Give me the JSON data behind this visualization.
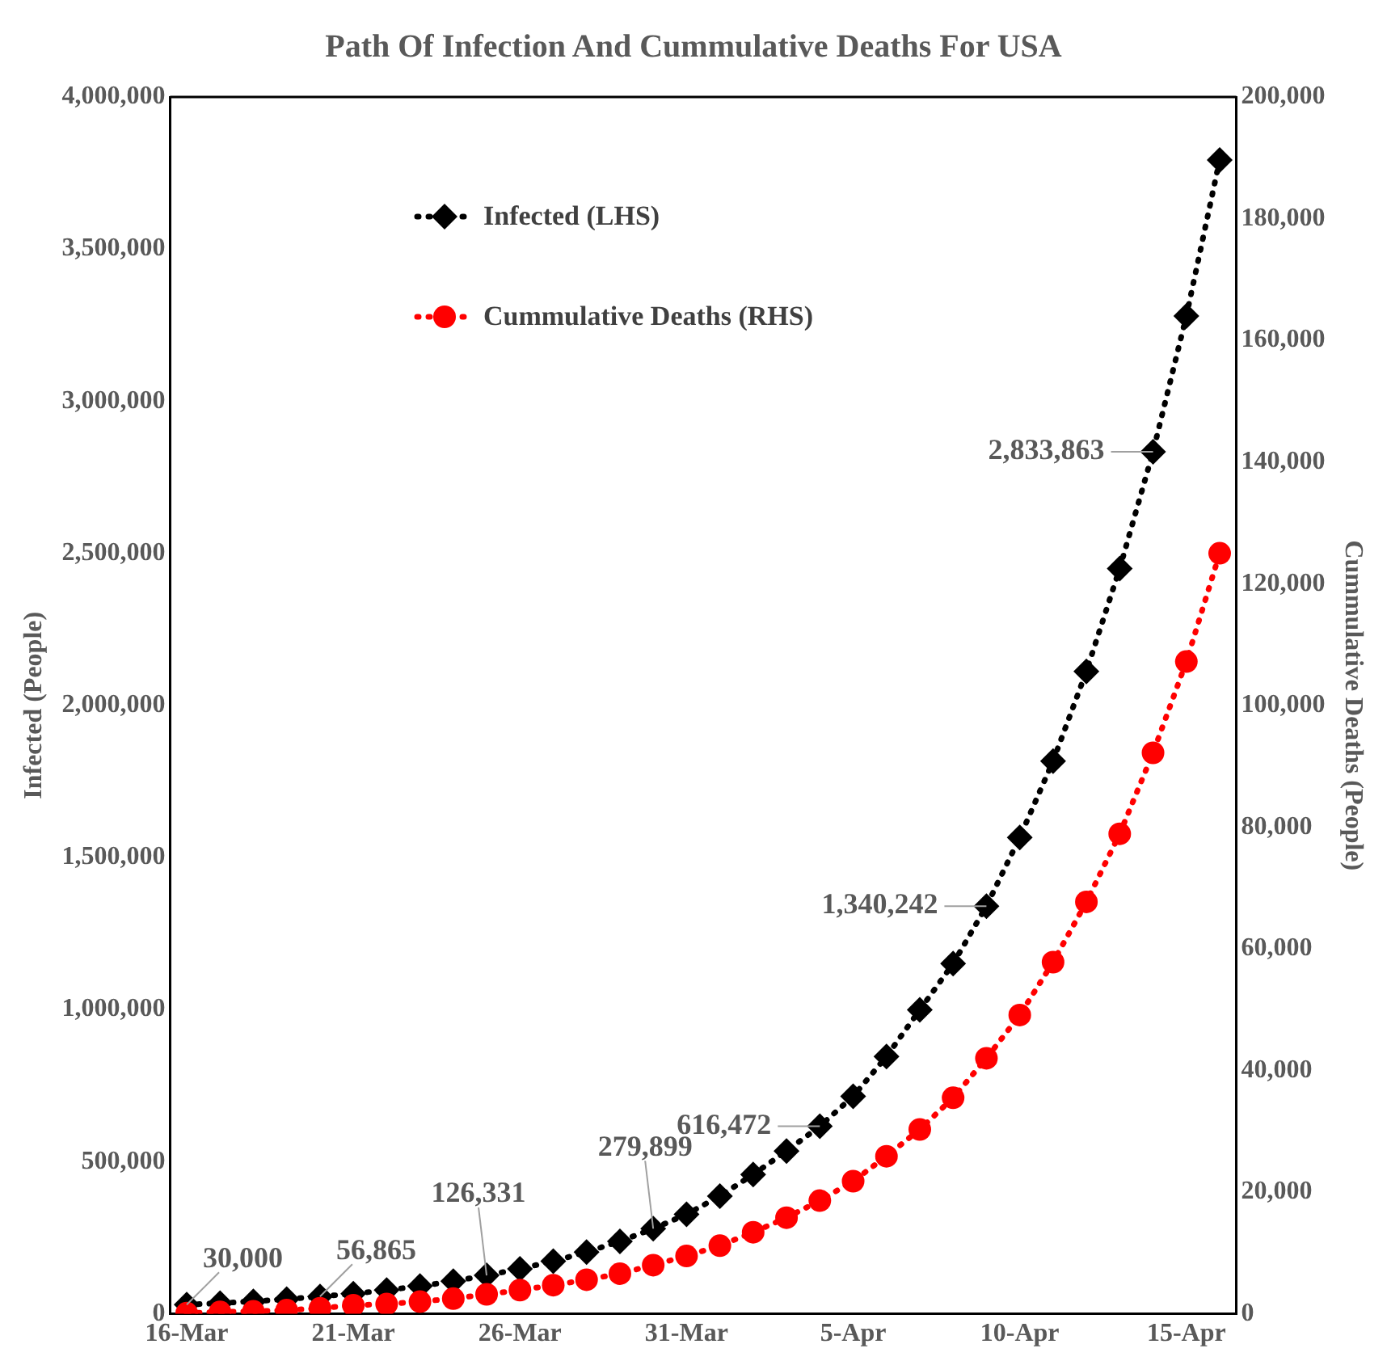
{
  "chart_data": {
    "type": "line",
    "title": "Path Of Infection And Cummulative Deaths For USA",
    "ylabel": "Infected (People)",
    "y2label": "Cummulative Deaths (People)",
    "categories": [
      "16-Mar",
      null,
      null,
      null,
      null,
      "21-Mar",
      null,
      null,
      null,
      null,
      "26-Mar",
      null,
      null,
      null,
      null,
      "31-Mar",
      null,
      null,
      null,
      null,
      "5-Apr",
      null,
      null,
      null,
      null,
      "10-Apr",
      null,
      null,
      null,
      null,
      "15-Apr",
      null
    ],
    "ylim": [
      0,
      4000000
    ],
    "yticks": [
      {
        "value": 0,
        "label": "0"
      },
      {
        "value": 500000,
        "label": "500,000"
      },
      {
        "value": 1000000,
        "label": "1,000,000"
      },
      {
        "value": 1500000,
        "label": "1,500,000"
      },
      {
        "value": 2000000,
        "label": "2,000,000"
      },
      {
        "value": 2500000,
        "label": "2,500,000"
      },
      {
        "value": 3000000,
        "label": "3,000,000"
      },
      {
        "value": 3500000,
        "label": "3,500,000"
      },
      {
        "value": 4000000,
        "label": "4,000,000"
      }
    ],
    "y2lim": [
      0,
      200000
    ],
    "y2ticks": [
      {
        "value": 0,
        "label": "0"
      },
      {
        "value": 20000,
        "label": "20,000"
      },
      {
        "value": 40000,
        "label": "40,000"
      },
      {
        "value": 60000,
        "label": "60,000"
      },
      {
        "value": 80000,
        "label": "80,000"
      },
      {
        "value": 100000,
        "label": "100,000"
      },
      {
        "value": 120000,
        "label": "120,000"
      },
      {
        "value": 140000,
        "label": "140,000"
      },
      {
        "value": 160000,
        "label": "160,000"
      },
      {
        "value": 180000,
        "label": "180,000"
      },
      {
        "value": 200000,
        "label": "200,000"
      }
    ],
    "series": [
      {
        "name": "Infected (LHS)",
        "color": "#000000",
        "marker": "diamond",
        "values": [
          30000,
          35000,
          41000,
          48000,
          56865,
          66000,
          78000,
          91000,
          107000,
          126331,
          148000,
          173000,
          203000,
          238000,
          279899,
          327000,
          387000,
          458000,
          535000,
          616472,
          715000,
          846000,
          999000,
          1151000,
          1340242,
          1566000,
          1817000,
          2112000,
          2450000,
          2833863,
          3280000,
          3793000
        ],
        "value_labels": [
          "30,000",
          null,
          null,
          null,
          "56,865",
          null,
          null,
          null,
          null,
          "126,331",
          null,
          null,
          null,
          null,
          "279,899",
          null,
          null,
          null,
          null,
          "616,472",
          null,
          null,
          null,
          null,
          "1,340,242",
          null,
          null,
          null,
          null,
          "2,833,863",
          null,
          null
        ]
      },
      {
        "name": "Cummulative Deaths (RHS)",
        "color": "#ff0000",
        "marker": "circle",
        "axis": "y2",
        "values": [
          100,
          300,
          400,
          600,
          900,
          1400,
          1600,
          2000,
          2500,
          3200,
          3900,
          4700,
          5600,
          6600,
          8000,
          9500,
          11200,
          13400,
          15800,
          18600,
          21800,
          25900,
          30300,
          35500,
          42000,
          49100,
          57800,
          67700,
          78900,
          92200,
          107200,
          125000
        ]
      }
    ],
    "line_style": "dotted",
    "grid": false,
    "legend": "top left"
  }
}
